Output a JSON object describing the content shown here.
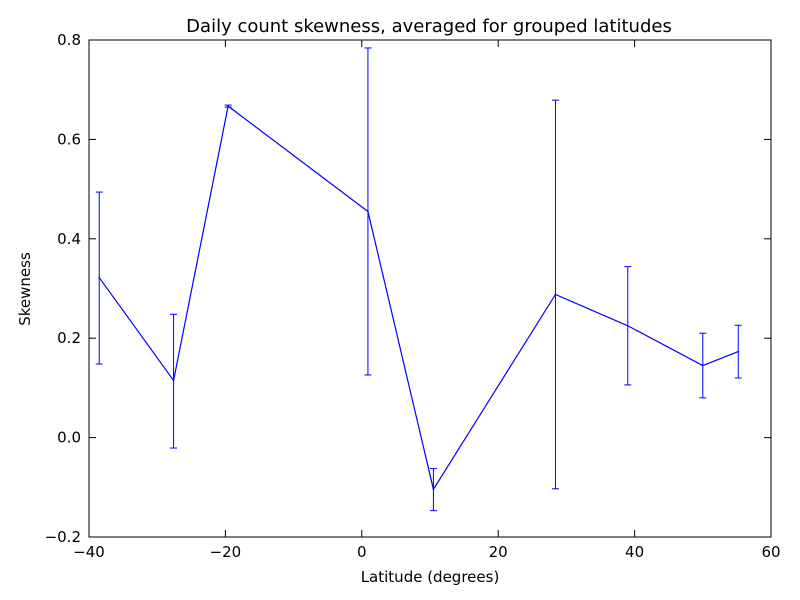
{
  "chart_data": {
    "type": "line",
    "title": "Daily count skewness, averaged for grouped latitudes",
    "xlabel": "Latitude (degrees)",
    "ylabel": "Skewness",
    "xlim": [
      -40,
      60
    ],
    "ylim": [
      -0.2,
      0.8
    ],
    "xticks": [
      -40,
      -20,
      0,
      20,
      40,
      60
    ],
    "xtick_labels": [
      "−40",
      "−20",
      "0",
      "20",
      "40",
      "60"
    ],
    "yticks": [
      -0.2,
      0.0,
      0.2,
      0.4,
      0.6,
      0.8
    ],
    "ytick_labels": [
      "−0.2",
      "0.0",
      "0.2",
      "0.4",
      "0.6",
      "0.8"
    ],
    "grid": false,
    "line_color": "#0000ff",
    "series": [
      {
        "x": [
          -38.5,
          -27.6,
          -19.6,
          0.9,
          10.5,
          28.4,
          39.0,
          50.0,
          55.2
        ],
        "y": [
          0.322,
          0.115,
          0.667,
          0.455,
          -0.104,
          0.288,
          0.225,
          0.145,
          0.173
        ],
        "err_low": [
          0.148,
          -0.021,
          0.665,
          0.126,
          -0.147,
          -0.103,
          0.106,
          0.08,
          0.12
        ],
        "err_high": [
          0.494,
          0.248,
          0.669,
          0.784,
          -0.062,
          0.679,
          0.344,
          0.21,
          0.226
        ]
      }
    ]
  }
}
